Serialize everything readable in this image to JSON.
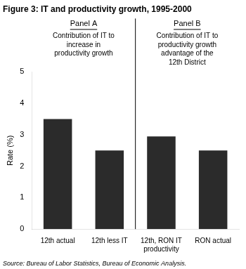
{
  "chart_data": {
    "type": "bar",
    "title": "Figure 3: IT and productivity growth, 1995-2000",
    "ylabel": "Rate (%)",
    "source": "Source: Bureau of Labor Statistics, Bureau of Economic Analysis.",
    "annotations": [
      {
        "label": "Panel A",
        "text": "Contribution of IT to\nincrease in\nproductivity growth"
      },
      {
        "label": "Panel B",
        "text": "Contribution of IT to\nproductivity growth\nadvantage of the\n12th District"
      }
    ],
    "categories": [
      "12th actual",
      "12th less IT",
      "12th, RON IT\nproductivity",
      "RON actual"
    ],
    "values": [
      3.5,
      2.5,
      2.95,
      2.5
    ],
    "color": "#2b2b2b",
    "ylim": [
      0,
      5
    ],
    "yticks": [
      0,
      1,
      2,
      3,
      4,
      5
    ],
    "grid": false
  }
}
